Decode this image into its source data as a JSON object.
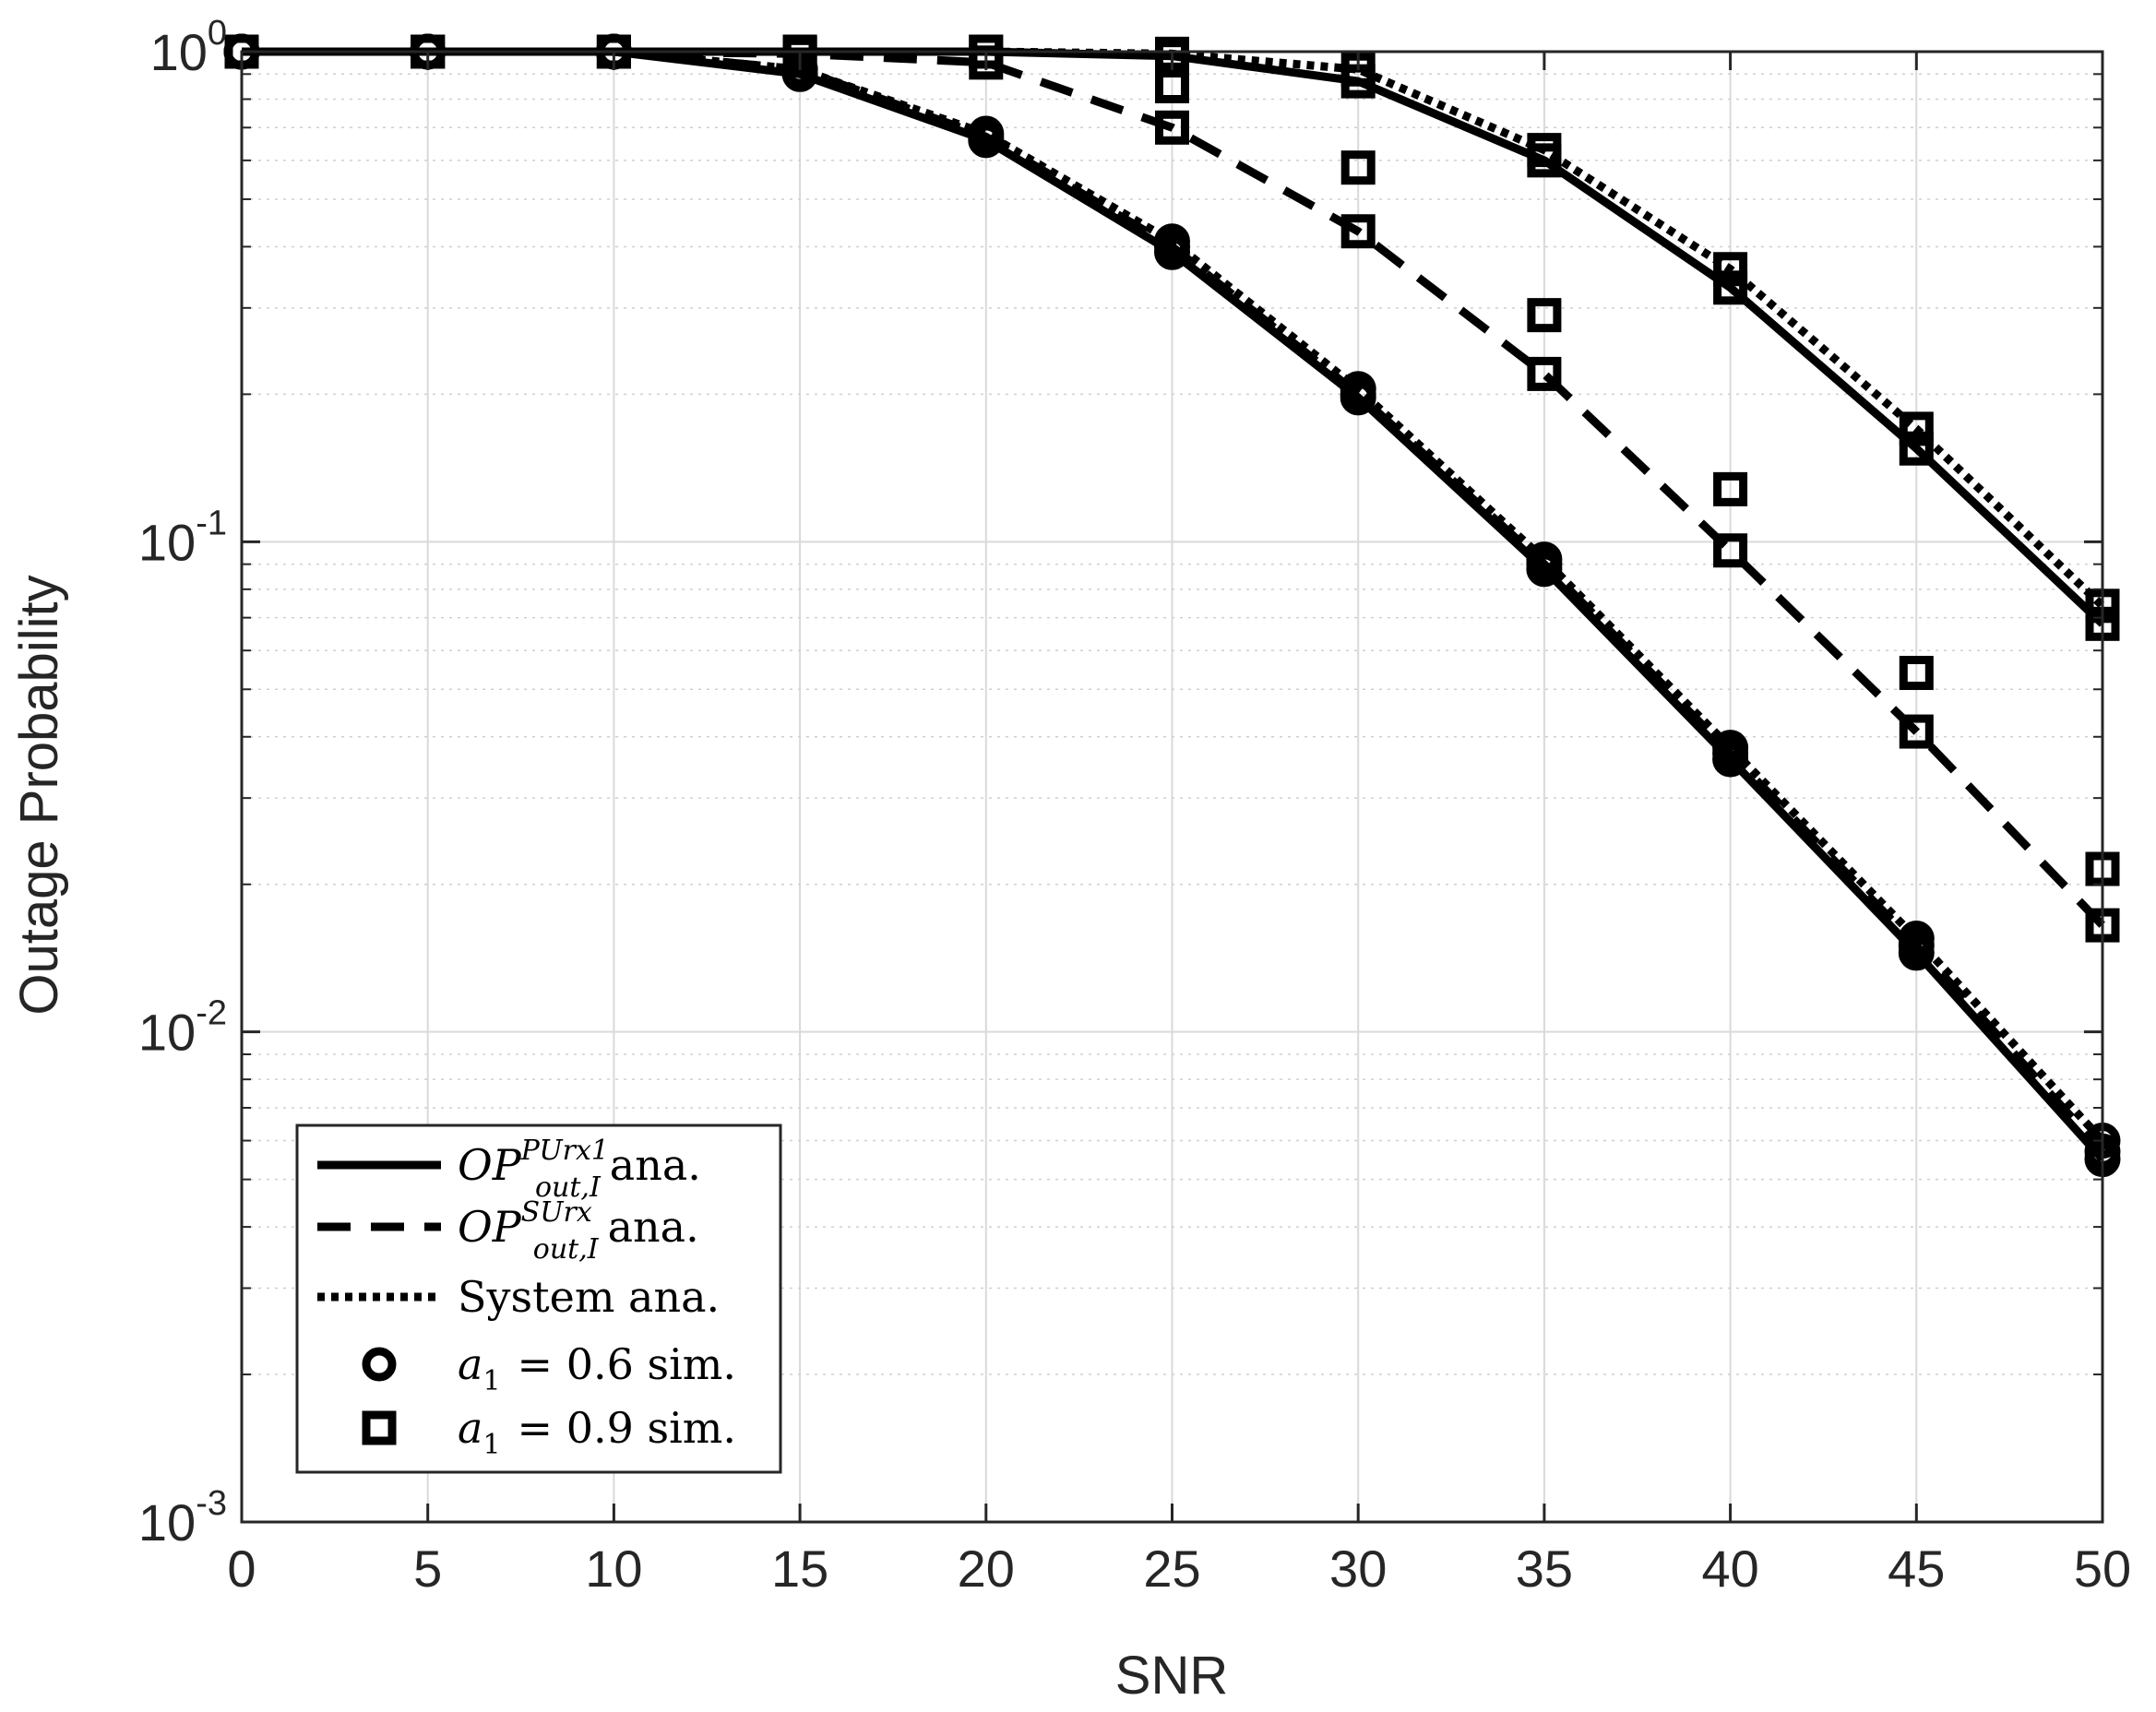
{
  "chart_data": {
    "type": "line",
    "xlabel": "SNR",
    "ylabel": "Outage Probability",
    "xlim": [
      0,
      50
    ],
    "ylim": [
      0.001,
      1
    ],
    "yscale": "log",
    "grid": true,
    "minor_grid": true,
    "xticks": [
      "0",
      "5",
      "10",
      "15",
      "20",
      "25",
      "30",
      "35",
      "40",
      "45",
      "50"
    ],
    "yticks": [
      {
        "value": 1,
        "base": "10",
        "exp": "0"
      },
      {
        "value": 0.1,
        "base": "10",
        "exp": "-1"
      },
      {
        "value": 0.01,
        "base": "10",
        "exp": "-2"
      },
      {
        "value": 0.001,
        "base": "10",
        "exp": "-3"
      }
    ],
    "x": [
      0,
      5,
      10,
      15,
      20,
      25,
      30,
      35,
      40,
      45,
      50
    ],
    "series": [
      {
        "key": "pu_a06",
        "style": "solid",
        "marker": "circle",
        "values": [
          1,
          1,
          1,
          0.9,
          0.66,
          0.39,
          0.197,
          0.088,
          0.036,
          0.0145,
          0.0055
        ]
      },
      {
        "key": "pu_a09",
        "style": "solid",
        "marker": "square",
        "values": [
          1,
          1,
          1,
          1,
          1,
          0.98,
          0.87,
          0.6,
          0.33,
          0.155,
          0.068
        ]
      },
      {
        "key": "su_a06",
        "style": "dashed",
        "marker": "circle",
        "values": [
          1,
          1,
          1,
          0.92,
          0.67,
          0.4,
          0.2,
          0.09,
          0.037,
          0.015,
          0.0057
        ]
      },
      {
        "key": "su_a09",
        "style": "dashed",
        "marker": "square",
        "values": [
          1,
          1,
          1,
          0.99,
          0.95,
          0.7,
          0.43,
          0.22,
          0.096,
          0.041,
          0.0165
        ]
      },
      {
        "key": "sys_a06",
        "style": "dotted",
        "marker": "circle",
        "values": [
          1,
          1,
          1,
          0.92,
          0.68,
          0.41,
          0.205,
          0.092,
          0.038,
          0.0155,
          0.006
        ]
      },
      {
        "key": "sys_a09",
        "style": "dotted",
        "marker": "square",
        "values": [
          1,
          1,
          1,
          1,
          1,
          0.99,
          0.92,
          0.63,
          0.36,
          0.17,
          0.074
        ]
      }
    ],
    "extra_markers": [
      {
        "marker": "square",
        "x": [
          25,
          30,
          35,
          40,
          45,
          50
        ],
        "values": [
          0.85,
          0.58,
          0.29,
          0.128,
          0.054,
          0.0215
        ]
      }
    ],
    "legend": {
      "position": "bottom-left",
      "entries": [
        {
          "style": "solid",
          "marker": "none",
          "sym": "OP",
          "sup": "PUrx1",
          "sub": "out,I",
          "text": "ana."
        },
        {
          "style": "dashed",
          "marker": "none",
          "sym": "OP",
          "sup": "SUrx",
          "sub": "out,I",
          "text": "ana."
        },
        {
          "style": "dotted",
          "marker": "none",
          "text": "System ana."
        },
        {
          "style": "none",
          "marker": "circle",
          "sym": "a",
          "sub": "1",
          "text": "= 0.6 sim."
        },
        {
          "style": "none",
          "marker": "square",
          "sym": "a",
          "sub": "1",
          "text": "= 0.9 sim."
        }
      ]
    }
  }
}
